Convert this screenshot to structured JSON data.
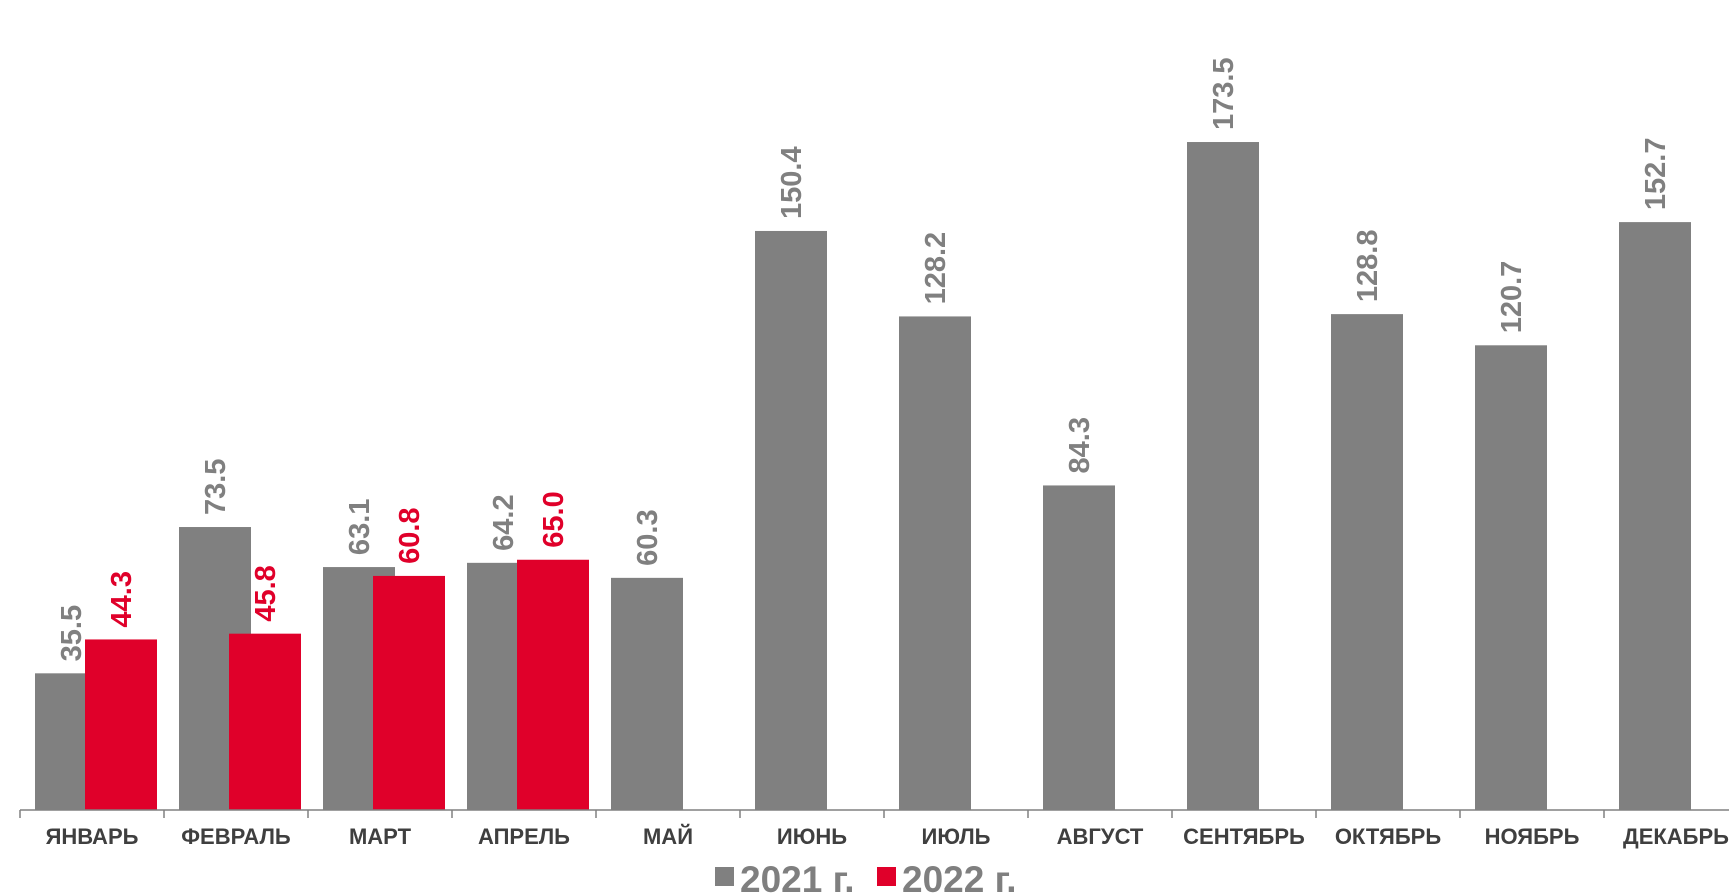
{
  "colors": {
    "s2021": "#808080",
    "s2022": "#e0002a",
    "axis": "#808080",
    "category_text": "#3f3f3f"
  },
  "chart_data": {
    "type": "bar",
    "categories": [
      "ЯНВАРЬ",
      "ФЕВРАЛЬ",
      "МАРТ",
      "АПРЕЛЬ",
      "МАЙ",
      "ИЮНЬ",
      "ИЮЛЬ",
      "АВГУСТ",
      "СЕНТЯБРЬ",
      "ОКТЯБРЬ",
      "НОЯБРЬ",
      "ДЕКАБРЬ"
    ],
    "series": [
      {
        "name": "2021 г.",
        "values": [
          35.5,
          73.5,
          63.1,
          64.2,
          60.3,
          150.4,
          128.2,
          84.3,
          173.5,
          128.8,
          120.7,
          152.7
        ]
      },
      {
        "name": "2022 г.",
        "values": [
          44.3,
          45.8,
          60.8,
          65.0,
          null,
          null,
          null,
          null,
          null,
          null,
          null,
          null
        ]
      }
    ],
    "data_labels": [
      [
        "35.5",
        "73.5",
        "63.1",
        "64.2",
        "60.3",
        "150.4",
        "128.2",
        "84.3",
        "173.5",
        "128.8",
        "120.7",
        "152.7"
      ],
      [
        "44.3",
        "45.8",
        "60.8",
        "65.0",
        null,
        null,
        null,
        null,
        null,
        null,
        null,
        null
      ]
    ],
    "ylim": [
      0,
      200
    ],
    "grid": false,
    "legend": "bottom-center",
    "title": "",
    "xlabel": "",
    "ylabel": ""
  }
}
